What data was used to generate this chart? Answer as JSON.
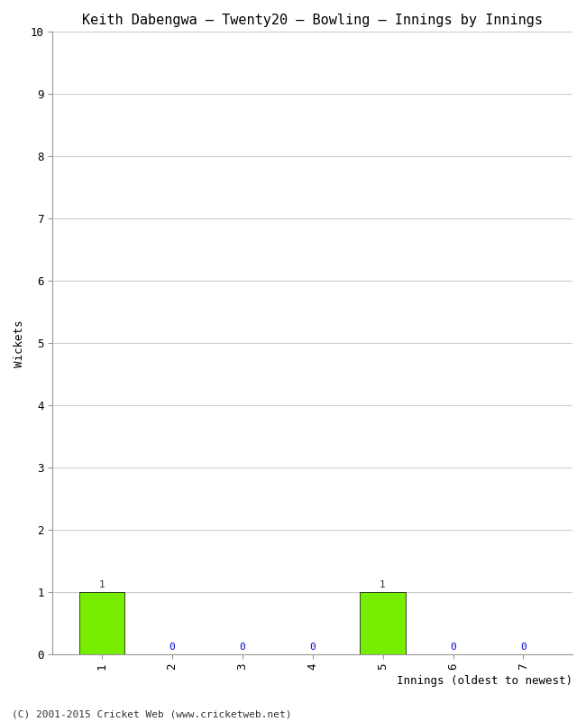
{
  "title": "Keith Dabengwa – Twenty20 – Bowling – Innings by Innings",
  "xlabel": "Innings (oldest to newest)",
  "ylabel": "Wickets",
  "categories": [
    "1",
    "2",
    "3",
    "4",
    "5",
    "6",
    "7"
  ],
  "values": [
    1,
    0,
    0,
    0,
    1,
    0,
    0
  ],
  "bar_color": "#77ee00",
  "bar_edge_color": "#000000",
  "ylim": [
    0,
    10
  ],
  "yticks": [
    0,
    1,
    2,
    3,
    4,
    5,
    6,
    7,
    8,
    9,
    10
  ],
  "label_color_nonzero": "#333333",
  "label_color_zero": "#0000cc",
  "background_color": "#ffffff",
  "grid_color": "#cccccc",
  "title_fontsize": 11,
  "axis_fontsize": 9,
  "tick_fontsize": 9,
  "label_fontsize": 8,
  "footer": "(C) 2001-2015 Cricket Web (www.cricketweb.net)",
  "footer_fontsize": 8
}
